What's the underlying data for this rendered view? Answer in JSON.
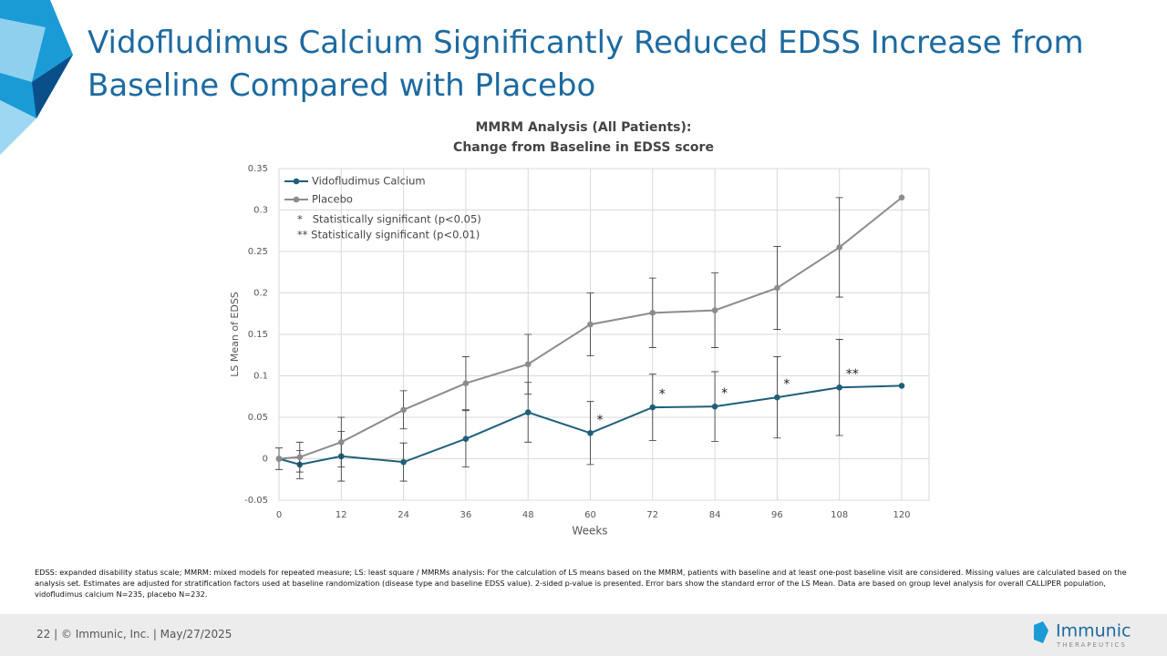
{
  "slide": {
    "title": "Vidofludimus Calcium Significantly Reduced EDSS Increase from Baseline Compared with Placebo",
    "footnote": "EDSS: expanded disability status scale; MMRM: mixed models for repeated measure; LS: least square / MMRMs analysis: For the calculation of LS means based on the MMRM, patients with baseline and at least one-post baseline visit are considered. Missing values are calculated based on the analysis set. Estimates are adjusted for stratification factors used at baseline randomization (disease type and baseline EDSS value). 2-sided p-value is presented. Error bars show the standard error of the LS Mean. Data are based on group level analysis for overall CALLIPER population, vidofludimus calcium N=235, placebo N=232.",
    "footer": "22  |  © Immunic, Inc.  | May/27/2025",
    "logo": "Immunic",
    "logo_sub": "THERAPEUTICS"
  },
  "chart_data": {
    "type": "line",
    "title": "MMRM Analysis (All Patients):",
    "subtitle": "Change from Baseline in EDSS score",
    "x_label": "Weeks",
    "y_label": "LS Mean of EDSS",
    "x": [
      0,
      4,
      12,
      24,
      36,
      48,
      60,
      72,
      84,
      96,
      108,
      120
    ],
    "xlim": [
      0,
      120
    ],
    "xticks": [
      0,
      12,
      24,
      36,
      48,
      60,
      72,
      84,
      96,
      108,
      120
    ],
    "ylim": [
      -0.05,
      0.35
    ],
    "yticks": [
      -0.05,
      0,
      0.05,
      0.1,
      0.15,
      0.2,
      0.25,
      0.3,
      0.35
    ],
    "grid": true,
    "series": [
      {
        "name": "Vidofludimus Calcium",
        "color": "#1f5f7a",
        "values": [
          0,
          -0.007,
          0.003,
          -0.004,
          0.024,
          0.056,
          0.031,
          0.062,
          0.063,
          0.074,
          0.086,
          0.088
        ],
        "errors": [
          0.013,
          0.017,
          0.03,
          0.023,
          0.034,
          0.036,
          0.038,
          0.04,
          0.042,
          0.049,
          0.058,
          null
        ],
        "annotations": [
          null,
          null,
          null,
          null,
          null,
          null,
          "*",
          "*",
          "*",
          "*",
          "**",
          null
        ]
      },
      {
        "name": "Placebo",
        "color": "#8c8c8c",
        "values": [
          0,
          0.002,
          0.02,
          0.059,
          0.091,
          0.114,
          0.162,
          0.176,
          0.179,
          0.206,
          0.255,
          0.315
        ],
        "errors": [
          null,
          0.018,
          0.03,
          0.023,
          0.032,
          0.036,
          0.038,
          0.042,
          0.045,
          0.05,
          0.06,
          null
        ]
      }
    ],
    "legend_notes": [
      "*   Statistically significant (p<0.05)",
      "** Statistically significant (p<0.01)"
    ]
  }
}
